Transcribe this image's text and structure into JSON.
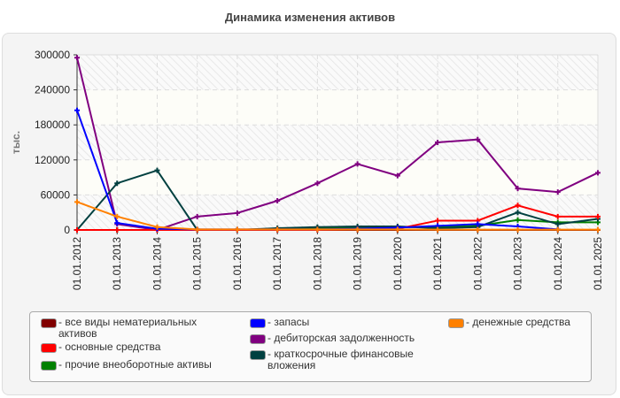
{
  "chart_data": {
    "type": "line",
    "title": "Динамика изменения активов",
    "ylabel": "тыс.",
    "xlabel": "",
    "ylim": [
      0,
      300000
    ],
    "yticks": [
      "0",
      "60000",
      "120000",
      "180000",
      "240000",
      "300000"
    ],
    "grid": true,
    "legend_placement": "bottom",
    "categories": [
      "01.01.2012",
      "01.01.2013",
      "01.01.2014",
      "01.01.2015",
      "01.01.2016",
      "01.01.2017",
      "01.01.2018",
      "01.01.2019",
      "01.01.2020",
      "01.01.2021",
      "01.01.2022",
      "01.01.2023",
      "01.01.2024",
      "01.01.2025"
    ],
    "series": [
      {
        "name": "все виды нематериальных активов",
        "color": "#800000",
        "values": [
          0,
          0,
          0,
          0,
          0,
          0,
          0,
          0,
          0,
          0,
          0,
          0,
          0,
          0
        ]
      },
      {
        "name": "основные средства",
        "color": "#ff0000",
        "values": [
          0,
          0,
          0,
          0,
          0,
          0,
          0,
          1000,
          2000,
          16000,
          16000,
          42000,
          23000,
          23000
        ]
      },
      {
        "name": "прочие внеоборотные активы",
        "color": "#008000",
        "values": [
          0,
          0,
          0,
          0,
          0,
          2000,
          3000,
          4000,
          5000,
          5000,
          7000,
          17000,
          13000,
          13000
        ]
      },
      {
        "name": "запасы",
        "color": "#0000ff",
        "values": [
          205000,
          12000,
          2000,
          1000,
          1000,
          1000,
          1000,
          2000,
          4000,
          7000,
          10000,
          6000,
          1000,
          null
        ]
      },
      {
        "name": "дебиторская задолженность",
        "color": "#800080",
        "values": [
          295000,
          10000,
          0,
          23000,
          29000,
          50000,
          80000,
          113000,
          93000,
          150000,
          155000,
          71000,
          65000,
          98000
        ]
      },
      {
        "name": "краткосрочные финансовые вложения",
        "color": "#004040",
        "values": [
          0,
          80000,
          102000,
          0,
          0,
          3000,
          5000,
          6000,
          6000,
          3000,
          5000,
          30000,
          10000,
          19000
        ]
      },
      {
        "name": "денежные средства",
        "color": "#ff8000",
        "values": [
          48000,
          23000,
          5000,
          1000,
          1000,
          1000,
          1000,
          1000,
          1000,
          500,
          500,
          500,
          500,
          500
        ]
      }
    ]
  }
}
